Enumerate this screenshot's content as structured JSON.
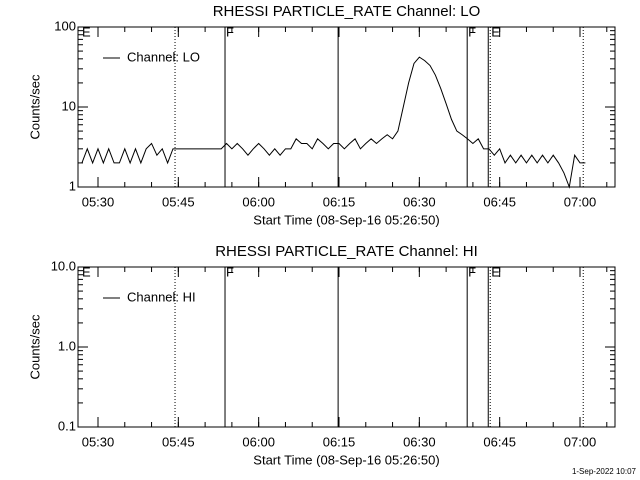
{
  "chart_data": [
    {
      "type": "line",
      "title": "RHESSI PARTICLE_RATE Channel: LO",
      "x_label": "Start Time (08-Sep-16 05:26:50)",
      "y_label": "Counts/sec",
      "y_log": true,
      "ylim": [
        1,
        100
      ],
      "yticks": [
        1,
        10,
        100
      ],
      "xlim": [
        "05:26:16",
        "07:06:32"
      ],
      "xticks": [
        "05:30",
        "05:45",
        "06:00",
        "06:15",
        "06:30",
        "06:45",
        "07:00"
      ],
      "legend": "upper left",
      "markers": [
        {
          "time": "05:26:50",
          "label": "E"
        },
        {
          "time": "05:44:23",
          "style": "dotted"
        },
        {
          "time": "05:53:43",
          "style": "solid",
          "label": "F"
        },
        {
          "time": "06:14:50",
          "style": "solid"
        },
        {
          "time": "06:38:56",
          "style": "solid",
          "label": "F"
        },
        {
          "time": "06:42:52",
          "style": "solid"
        },
        {
          "time": "06:43:14",
          "style": "dotted",
          "label": "E"
        },
        {
          "time": "07:00:36",
          "style": "dotted"
        }
      ],
      "x": [
        "05:27",
        "05:28",
        "05:29",
        "05:30",
        "05:31",
        "05:32",
        "05:33",
        "05:34",
        "05:35",
        "05:36",
        "05:37",
        "05:38",
        "05:39",
        "05:40",
        "05:41",
        "05:42",
        "05:43",
        "05:44",
        "05:45",
        "05:46",
        "05:47",
        "05:48",
        "05:49",
        "05:50",
        "05:51",
        "05:52",
        "05:53",
        "05:54",
        "05:55",
        "05:56",
        "05:57",
        "05:58",
        "05:59",
        "06:00",
        "06:01",
        "06:02",
        "06:03",
        "06:04",
        "06:05",
        "06:06",
        "06:07",
        "06:08",
        "06:09",
        "06:10",
        "06:11",
        "06:12",
        "06:13",
        "06:14",
        "06:15",
        "06:16",
        "06:17",
        "06:18",
        "06:19",
        "06:20",
        "06:21",
        "06:22",
        "06:23",
        "06:24",
        "06:25",
        "06:26",
        "06:27",
        "06:28",
        "06:29",
        "06:30",
        "06:31",
        "06:32",
        "06:33",
        "06:34",
        "06:35",
        "06:36",
        "06:37",
        "06:38",
        "06:39",
        "06:40",
        "06:41",
        "06:42",
        "06:43",
        "06:44",
        "06:45",
        "06:46",
        "06:47",
        "06:48",
        "06:49",
        "06:50",
        "06:51",
        "06:52",
        "06:53",
        "06:54",
        "06:55",
        "06:56",
        "06:57",
        "06:58",
        "06:59",
        "07:00",
        "07:01"
      ],
      "series": [
        {
          "name": "Channel: LO",
          "color": "#000000",
          "values": [
            2,
            3,
            2,
            3,
            2,
            3,
            2,
            2,
            3,
            2,
            3,
            2,
            3,
            3.5,
            2.5,
            3,
            2,
            3,
            3,
            3,
            3,
            3,
            3,
            3,
            3,
            3,
            3,
            3.5,
            3,
            3.5,
            3,
            2.5,
            3,
            3.5,
            3,
            2.5,
            3,
            2.5,
            3,
            3,
            4,
            3.5,
            3.5,
            3,
            4,
            3.5,
            3,
            3.5,
            3.5,
            3,
            3.5,
            4,
            3,
            3.5,
            4,
            3.5,
            4,
            4.5,
            4,
            5,
            10,
            20,
            35,
            42,
            38,
            33,
            25,
            17,
            11,
            7,
            5,
            4.5,
            4,
            3.5,
            4,
            3,
            3,
            2.5,
            3,
            2,
            2.5,
            2,
            2.5,
            2,
            2.5,
            2,
            2.5,
            2,
            2.5,
            2,
            1.5,
            1,
            2.5,
            2,
            2
          ]
        }
      ]
    },
    {
      "type": "line",
      "title": "RHESSI PARTICLE_RATE Channel: HI",
      "x_label": "Start Time (08-Sep-16 05:26:50)",
      "y_label": "Counts/sec",
      "y_log": true,
      "ylim": [
        0.1,
        10
      ],
      "yticks": [
        0.1,
        {
          "value": 1,
          "label": "1.0"
        },
        {
          "value": 10,
          "label": "10.0"
        }
      ],
      "xlim": [
        "05:26:16",
        "07:06:32"
      ],
      "xticks": [
        "05:30",
        "05:45",
        "06:00",
        "06:15",
        "06:30",
        "06:45",
        "07:00"
      ],
      "legend": "upper left",
      "markers": [
        {
          "time": "05:26:50",
          "label": "E"
        },
        {
          "time": "05:44:23",
          "style": "dotted"
        },
        {
          "time": "05:53:43",
          "style": "solid",
          "label": "F"
        },
        {
          "time": "06:14:50",
          "style": "solid"
        },
        {
          "time": "06:38:56",
          "style": "solid",
          "label": "F"
        },
        {
          "time": "06:42:52",
          "style": "solid"
        },
        {
          "time": "06:43:14",
          "style": "dotted",
          "label": "E"
        },
        {
          "time": "07:00:36",
          "style": "dotted"
        }
      ],
      "x": [],
      "series": [
        {
          "name": "Channel: HI",
          "color": "#000000",
          "values": []
        }
      ]
    }
  ],
  "footer": "1-Sep-2022 10:07"
}
